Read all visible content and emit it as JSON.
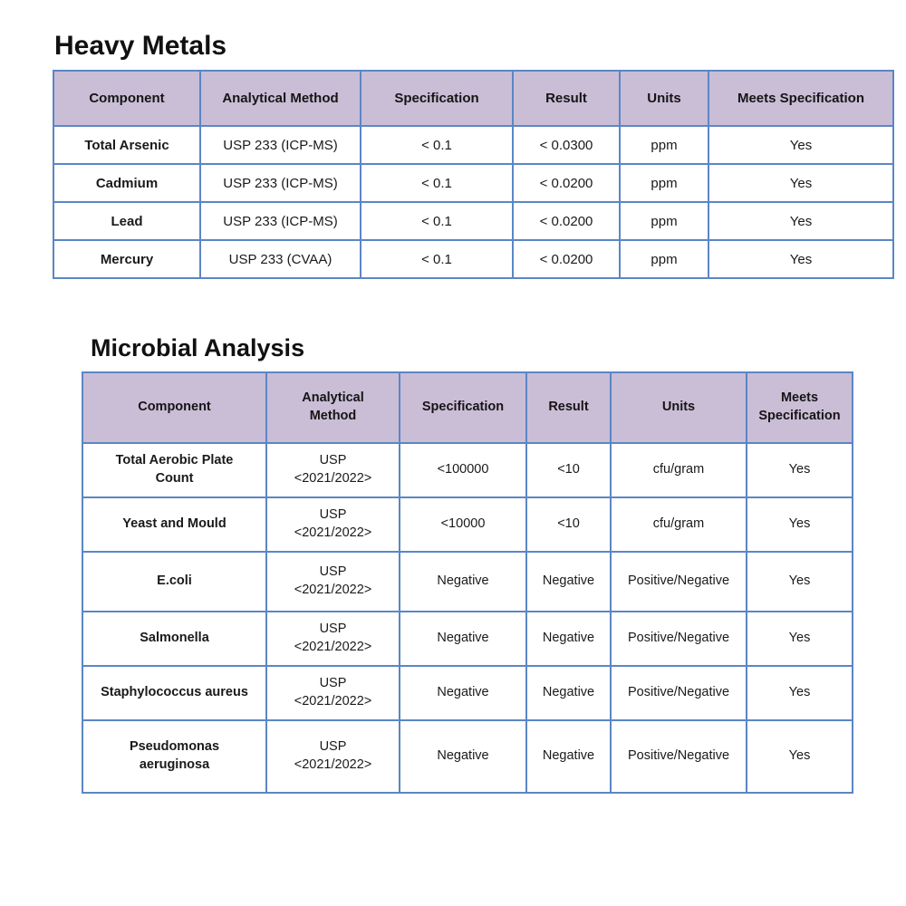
{
  "colors": {
    "header_bg": "#cabdd6",
    "border": "#5b86c5",
    "text": "#1a1a1a"
  },
  "sections": [
    {
      "title": "Heavy Metals",
      "table": {
        "headers": [
          "Component",
          "Analytical Method",
          "Specification",
          "Result",
          "Units",
          "Meets Specification"
        ],
        "rows": [
          [
            "Total Arsenic",
            "USP 233 (ICP-MS)",
            "< 0.1",
            "< 0.0300",
            "ppm",
            "Yes"
          ],
          [
            "Cadmium",
            "USP 233 (ICP-MS)",
            "< 0.1",
            "< 0.0200",
            "ppm",
            "Yes"
          ],
          [
            "Lead",
            "USP 233 (ICP-MS)",
            "< 0.1",
            "< 0.0200",
            "ppm",
            "Yes"
          ],
          [
            "Mercury",
            "USP 233 (CVAA)",
            "< 0.1",
            "< 0.0200",
            "ppm",
            "Yes"
          ]
        ]
      }
    },
    {
      "title": "Microbial Analysis",
      "table": {
        "headers": [
          "Component",
          "Analytical\nMethod",
          "Specification",
          "Result",
          "Units",
          "Meets\nSpecification"
        ],
        "rows": [
          [
            "Total Aerobic Plate\nCount",
            "USP\n<2021/2022>",
            "<100000",
            "<10",
            "cfu/gram",
            "Yes"
          ],
          [
            "Yeast and Mould",
            "USP\n<2021/2022>",
            "<10000",
            "<10",
            "cfu/gram",
            "Yes"
          ],
          [
            "E.coli",
            "USP\n<2021/2022>",
            "Negative",
            "Negative",
            "Positive/Negative",
            "Yes"
          ],
          [
            "Salmonella",
            "USP\n<2021/2022>",
            "Negative",
            "Negative",
            "Positive/Negative",
            "Yes"
          ],
          [
            "Staphylococcus aureus",
            "USP\n<2021/2022>",
            "Negative",
            "Negative",
            "Positive/Negative",
            "Yes"
          ],
          [
            "Pseudomonas\naeruginosa",
            "USP\n<2021/2022>",
            "Negative",
            "Negative",
            "Positive/Negative",
            "Yes"
          ]
        ]
      }
    }
  ]
}
